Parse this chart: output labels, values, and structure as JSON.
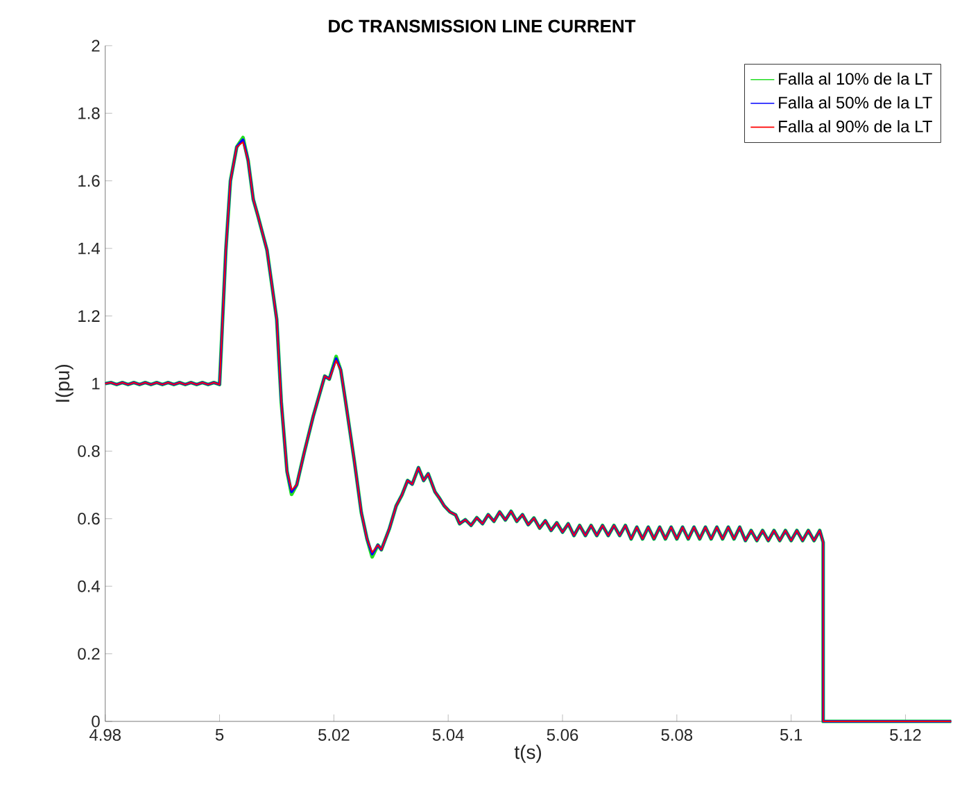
{
  "chart_data": {
    "type": "line",
    "title": "DC TRANSMISSION LINE CURRENT",
    "xlabel": "t(s)",
    "ylabel": "I(pu)",
    "x": [
      4.98,
      4.981,
      4.982,
      4.983,
      4.984,
      4.985,
      4.986,
      4.987,
      4.988,
      4.989,
      4.99,
      4.991,
      4.992,
      4.993,
      4.994,
      4.995,
      4.996,
      4.997,
      4.998,
      4.999,
      5.0,
      5.0011,
      5.0019,
      5.003,
      5.0041,
      5.005,
      5.0059,
      5.0067,
      5.0083,
      5.01,
      5.0108,
      5.0118,
      5.0126,
      5.0135,
      5.0148,
      5.0164,
      5.0184,
      5.0192,
      5.0204,
      5.0212,
      5.022,
      5.0236,
      5.0248,
      5.0258,
      5.0267,
      5.0277,
      5.0283,
      5.0297,
      5.0309,
      5.0319,
      5.0329,
      5.0337,
      5.0348,
      5.0357,
      5.0365,
      5.0377,
      5.0385,
      5.0393,
      5.0403,
      5.0413,
      5.042,
      5.043,
      5.044,
      5.045,
      5.046,
      5.047,
      5.048,
      5.049,
      5.05,
      5.051,
      5.052,
      5.053,
      5.054,
      5.055,
      5.056,
      5.057,
      5.058,
      5.059,
      5.06,
      5.061,
      5.062,
      5.063,
      5.064,
      5.065,
      5.066,
      5.067,
      5.068,
      5.069,
      5.07,
      5.071,
      5.072,
      5.073,
      5.074,
      5.075,
      5.076,
      5.077,
      5.078,
      5.079,
      5.08,
      5.081,
      5.082,
      5.083,
      5.084,
      5.085,
      5.086,
      5.087,
      5.088,
      5.089,
      5.09,
      5.091,
      5.092,
      5.093,
      5.094,
      5.095,
      5.096,
      5.097,
      5.098,
      5.099,
      5.1,
      5.101,
      5.102,
      5.103,
      5.104,
      5.105,
      5.1056,
      5.1056,
      5.128
    ],
    "series": [
      {
        "name": "Falla al 10% de la LT",
        "color": "#22dd22",
        "values": [
          1.0,
          1.003,
          0.997,
          1.003,
          0.997,
          1.003,
          0.997,
          1.003,
          0.997,
          1.003,
          0.997,
          1.003,
          0.997,
          1.003,
          0.997,
          1.003,
          0.997,
          1.003,
          0.997,
          1.003,
          0.997,
          1.395,
          1.6,
          1.7,
          1.728,
          1.66,
          1.545,
          1.497,
          1.395,
          1.19,
          0.945,
          0.74,
          0.672,
          0.7,
          0.795,
          0.904,
          1.022,
          1.013,
          1.08,
          1.04,
          0.952,
          0.768,
          0.618,
          0.54,
          0.487,
          0.522,
          0.508,
          0.57,
          0.638,
          0.67,
          0.713,
          0.702,
          0.751,
          0.713,
          0.733,
          0.679,
          0.66,
          0.638,
          0.62,
          0.611,
          0.585,
          0.597,
          0.58,
          0.603,
          0.585,
          0.612,
          0.592,
          0.62,
          0.596,
          0.622,
          0.592,
          0.612,
          0.582,
          0.602,
          0.572,
          0.594,
          0.565,
          0.588,
          0.56,
          0.585,
          0.55,
          0.58,
          0.55,
          0.58,
          0.55,
          0.58,
          0.55,
          0.58,
          0.55,
          0.58,
          0.54,
          0.575,
          0.54,
          0.575,
          0.54,
          0.575,
          0.54,
          0.575,
          0.54,
          0.575,
          0.54,
          0.575,
          0.54,
          0.575,
          0.54,
          0.575,
          0.54,
          0.575,
          0.54,
          0.575,
          0.535,
          0.565,
          0.535,
          0.565,
          0.535,
          0.565,
          0.535,
          0.565,
          0.535,
          0.565,
          0.535,
          0.565,
          0.535,
          0.565,
          0.53,
          0,
          0
        ]
      },
      {
        "name": "Falla al 50% de la LT",
        "color": "#0000ff",
        "values": [
          1.0,
          1.003,
          0.997,
          1.003,
          0.997,
          1.003,
          0.997,
          1.003,
          0.997,
          1.003,
          0.997,
          1.003,
          0.997,
          1.003,
          0.997,
          1.003,
          0.997,
          1.003,
          0.997,
          1.003,
          0.997,
          1.395,
          1.6,
          1.7,
          1.722,
          1.66,
          1.545,
          1.497,
          1.395,
          1.19,
          0.945,
          0.74,
          0.679,
          0.7,
          0.795,
          0.904,
          1.022,
          1.013,
          1.074,
          1.04,
          0.952,
          0.768,
          0.618,
          0.54,
          0.495,
          0.522,
          0.508,
          0.57,
          0.638,
          0.67,
          0.713,
          0.702,
          0.751,
          0.713,
          0.733,
          0.679,
          0.66,
          0.638,
          0.62,
          0.611,
          0.585,
          0.597,
          0.58,
          0.603,
          0.585,
          0.612,
          0.592,
          0.62,
          0.596,
          0.622,
          0.592,
          0.612,
          0.582,
          0.602,
          0.572,
          0.594,
          0.565,
          0.588,
          0.56,
          0.585,
          0.55,
          0.58,
          0.55,
          0.58,
          0.55,
          0.58,
          0.55,
          0.58,
          0.55,
          0.58,
          0.54,
          0.575,
          0.54,
          0.575,
          0.54,
          0.575,
          0.54,
          0.575,
          0.54,
          0.575,
          0.54,
          0.575,
          0.54,
          0.575,
          0.54,
          0.575,
          0.54,
          0.575,
          0.54,
          0.575,
          0.535,
          0.565,
          0.535,
          0.565,
          0.535,
          0.565,
          0.535,
          0.565,
          0.535,
          0.565,
          0.535,
          0.565,
          0.535,
          0.565,
          0.53,
          0,
          0
        ]
      },
      {
        "name": "Falla al 90% de la LT",
        "color": "#ff0000",
        "values": [
          1.0,
          1.003,
          0.997,
          1.003,
          0.997,
          1.003,
          0.997,
          1.003,
          0.997,
          1.003,
          0.997,
          1.003,
          0.997,
          1.003,
          0.997,
          1.003,
          0.997,
          1.003,
          0.997,
          1.003,
          0.997,
          1.395,
          1.6,
          1.7,
          1.715,
          1.66,
          1.545,
          1.497,
          1.395,
          1.19,
          0.945,
          0.74,
          0.685,
          0.7,
          0.795,
          0.904,
          1.022,
          1.013,
          1.068,
          1.04,
          0.952,
          0.768,
          0.618,
          0.54,
          0.5,
          0.522,
          0.508,
          0.57,
          0.638,
          0.67,
          0.713,
          0.702,
          0.751,
          0.713,
          0.733,
          0.679,
          0.66,
          0.638,
          0.62,
          0.611,
          0.585,
          0.597,
          0.58,
          0.603,
          0.585,
          0.612,
          0.592,
          0.62,
          0.596,
          0.622,
          0.592,
          0.612,
          0.582,
          0.602,
          0.572,
          0.594,
          0.565,
          0.588,
          0.56,
          0.585,
          0.55,
          0.58,
          0.55,
          0.58,
          0.55,
          0.58,
          0.55,
          0.58,
          0.55,
          0.58,
          0.54,
          0.575,
          0.54,
          0.575,
          0.54,
          0.575,
          0.54,
          0.575,
          0.54,
          0.575,
          0.54,
          0.575,
          0.54,
          0.575,
          0.54,
          0.575,
          0.54,
          0.575,
          0.54,
          0.575,
          0.535,
          0.565,
          0.535,
          0.565,
          0.535,
          0.565,
          0.535,
          0.565,
          0.535,
          0.565,
          0.535,
          0.565,
          0.535,
          0.565,
          0.53,
          0,
          0
        ]
      }
    ],
    "xlim": [
      4.98,
      5.128
    ],
    "ylim": [
      0,
      2
    ],
    "xticks": [
      4.98,
      5,
      5.02,
      5.04,
      5.06,
      5.08,
      5.1,
      5.12
    ],
    "yticks": [
      0,
      0.2,
      0.4,
      0.6,
      0.8,
      1,
      1.2,
      1.4,
      1.6,
      1.8,
      2
    ],
    "legend": "top right"
  }
}
